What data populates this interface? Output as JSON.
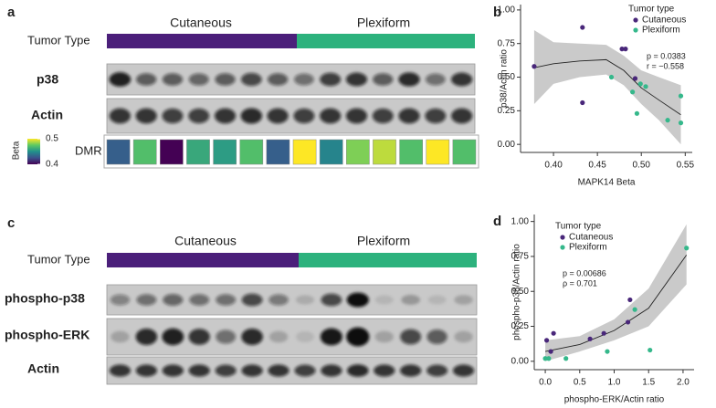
{
  "panel_a": {
    "label": "a",
    "group_labels": [
      "Cutaneous",
      "Plexiform"
    ],
    "tumor_type": "Tumor Type",
    "group_colors": [
      "#4b1f7a",
      "#2db27d"
    ],
    "blots": [
      "p38",
      "Actin"
    ],
    "dmr": {
      "label": "DMR",
      "beta_title": "Beta",
      "lim": [
        0.4,
        0.5
      ],
      "ticks": [
        0.5,
        0.4
      ],
      "colorscale": [
        "#440154",
        "#3b528b",
        "#21918c",
        "#5ec962",
        "#fde725"
      ],
      "values": [
        0.43,
        0.47,
        0.4,
        0.46,
        0.455,
        0.47,
        0.43,
        0.5,
        0.445,
        0.48,
        0.49,
        0.47,
        0.5,
        0.47
      ]
    }
  },
  "panel_c": {
    "label": "c",
    "group_labels": [
      "Cutaneous",
      "Plexiform"
    ],
    "tumor_type": "Tumor Type",
    "group_colors": [
      "#4b1f7a",
      "#2db27d"
    ],
    "blots": [
      "phospho-p38",
      "phospho-ERK",
      "Actin"
    ]
  },
  "chart_data": [
    {
      "type": "scatter",
      "panel_label": "b",
      "xlabel": "MAPK14 Beta",
      "ylabel": "p38/Actin ratio",
      "legend_title": "Tumor type",
      "annotations": [
        "p = 0.0383",
        "r = −0.558"
      ],
      "xlim": [
        0.3625,
        0.558
      ],
      "ylim": [
        -0.06,
        1.04
      ],
      "xticks": [
        {
          "value": 0.4,
          "label": "0.40"
        },
        0.45,
        {
          "value": 0.5,
          "label": "0.50"
        },
        0.55
      ],
      "yticks": [
        {
          "value": 0,
          "label": "0.00"
        },
        0.25,
        {
          "value": 0.5,
          "label": "0.50"
        },
        0.75,
        {
          "value": 1,
          "label": "1.00"
        }
      ],
      "series": [
        {
          "name": "Cutaneous",
          "color": "#49277a",
          "x": [
            0.378,
            0.433,
            0.433,
            0.478,
            0.482,
            0.493
          ],
          "values": [
            0.58,
            0.87,
            0.31,
            0.71,
            0.71,
            0.49
          ]
        },
        {
          "name": "Plexiform",
          "color": "#35b88b",
          "x": [
            0.466,
            0.49,
            0.495,
            0.499,
            0.505,
            0.53,
            0.545,
            0.545
          ],
          "values": [
            0.5,
            0.39,
            0.23,
            0.45,
            0.43,
            0.18,
            0.36,
            0.16
          ]
        }
      ],
      "fit": {
        "x": [
          0.378,
          0.4,
          0.43,
          0.46,
          0.48,
          0.5,
          0.52,
          0.545
        ],
        "values": [
          0.57,
          0.6,
          0.62,
          0.63,
          0.55,
          0.42,
          0.33,
          0.22
        ],
        "lower": [
          0.3,
          0.45,
          0.5,
          0.52,
          0.44,
          0.3,
          0.18,
          0.0
        ],
        "upper": [
          0.85,
          0.76,
          0.75,
          0.74,
          0.66,
          0.55,
          0.5,
          0.44
        ]
      }
    },
    {
      "type": "scatter",
      "panel_label": "d",
      "xlabel": "phospho-ERK/Actin ratio",
      "ylabel": "phospho-p38/Actin ratio",
      "legend_title": "Tumor type",
      "annotations": [
        "p = 0.00686",
        "ρ = 0.701"
      ],
      "xlim": [
        -0.16,
        2.16
      ],
      "ylim": [
        -0.06,
        1.05
      ],
      "xticks": [
        {
          "value": 0,
          "label": "0.0"
        },
        0.5,
        {
          "value": 1,
          "label": "1.0"
        },
        1.5,
        {
          "value": 2,
          "label": "2.0"
        }
      ],
      "yticks": [
        {
          "value": 0,
          "label": "0.00"
        },
        0.25,
        {
          "value": 0.5,
          "label": "0.50"
        },
        0.75,
        {
          "value": 1,
          "label": "1.00"
        }
      ],
      "series": [
        {
          "name": "Cutaneous",
          "color": "#49277a",
          "x": [
            0.02,
            0.08,
            0.12,
            0.65,
            0.85,
            1.2,
            1.23
          ],
          "values": [
            0.15,
            0.07,
            0.2,
            0.16,
            0.2,
            0.28,
            0.44
          ]
        },
        {
          "name": "Plexiform",
          "color": "#35b88b",
          "x": [
            0,
            0.05,
            0.3,
            0.9,
            1.3,
            1.52,
            2.05
          ],
          "values": [
            0.02,
            0.02,
            0.02,
            0.07,
            0.37,
            0.08,
            0.81
          ]
        }
      ],
      "fit": {
        "x": [
          0,
          0.5,
          1,
          1.5,
          2.05
        ],
        "values": [
          0.07,
          0.12,
          0.22,
          0.38,
          0.76
        ],
        "lower": [
          0,
          0.07,
          0.15,
          0.25,
          0.55
        ],
        "upper": [
          0.15,
          0.18,
          0.3,
          0.52,
          0.98
        ]
      }
    }
  ]
}
